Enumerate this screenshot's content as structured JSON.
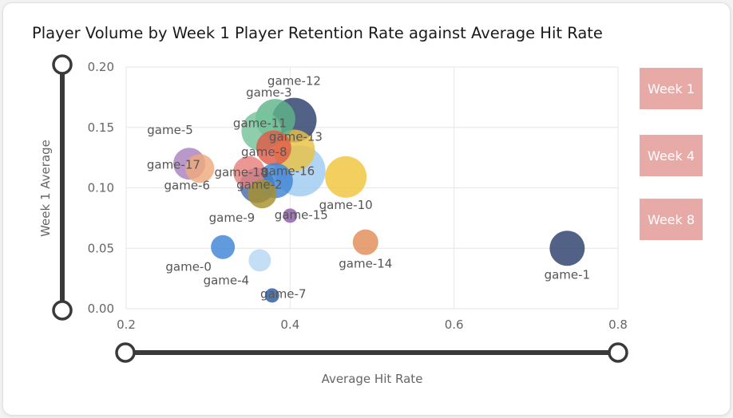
{
  "title": "Player Volume by Week 1 Player Retention Rate against Average Hit Rate",
  "buttons": [
    {
      "label": "Week 1"
    },
    {
      "label": "Week 4"
    },
    {
      "label": "Week 8"
    }
  ],
  "colors": {
    "button_bg": "#e8aaa6",
    "slider": "#3a3a3a"
  },
  "chart_data": {
    "type": "scatter",
    "title": "Player Volume by Week 1 Player Retention Rate against Average Hit Rate",
    "xlabel": "Average Hit Rate",
    "ylabel": "Week 1 Average",
    "xlim": [
      0.2,
      0.8
    ],
    "ylim": [
      0.0,
      0.2
    ],
    "xticks": [
      0.2,
      0.4,
      0.6,
      0.8
    ],
    "xtick_labels": [
      "0.2",
      "0.4",
      "0.6",
      "0.8"
    ],
    "yticks": [
      0.0,
      0.05,
      0.1,
      0.15,
      0.2
    ],
    "ytick_labels": [
      "0.00",
      "0.05",
      "0.10",
      "0.15",
      "0.20"
    ],
    "grid": true,
    "points": [
      {
        "label": "game-12",
        "x": 0.405,
        "y": 0.156,
        "size": 28,
        "color": "#2c3e6b"
      },
      {
        "label": "game-3",
        "x": 0.382,
        "y": 0.157,
        "size": 25,
        "color": "#5fb58a"
      },
      {
        "label": "game-11",
        "x": 0.365,
        "y": 0.147,
        "size": 25,
        "color": "#76c39a"
      },
      {
        "label": "game-13",
        "x": 0.405,
        "y": 0.131,
        "size": 26,
        "color": "#e9c244"
      },
      {
        "label": "game-8",
        "x": 0.38,
        "y": 0.133,
        "size": 22,
        "color": "#df5a48"
      },
      {
        "label": "game-5",
        "x": 0.277,
        "y": 0.12,
        "size": 20,
        "color": "#a883bd"
      },
      {
        "label": "game-17",
        "x": 0.29,
        "y": 0.116,
        "size": 18,
        "color": "#eea97c"
      },
      {
        "label": "game-18",
        "x": 0.35,
        "y": 0.113,
        "size": 20,
        "color": "#e8807d"
      },
      {
        "label": "game-6",
        "x": 0.36,
        "y": 0.102,
        "size": 22,
        "color": "#4a6ba8"
      },
      {
        "label": "game-2",
        "x": 0.382,
        "y": 0.106,
        "size": 22,
        "color": "#3e84d6"
      },
      {
        "label": "game-16",
        "x": 0.412,
        "y": 0.114,
        "size": 32,
        "color": "#9fcbf0"
      },
      {
        "label": "game-10",
        "x": 0.468,
        "y": 0.109,
        "size": 26,
        "color": "#f0c43c"
      },
      {
        "label": "game-9",
        "x": 0.366,
        "y": 0.095,
        "size": 18,
        "color": "#a8902c"
      },
      {
        "label": "game-15",
        "x": 0.4,
        "y": 0.077,
        "size": 9,
        "color": "#8d5aa8"
      },
      {
        "label": "game-0",
        "x": 0.318,
        "y": 0.051,
        "size": 15,
        "color": "#3e84d6"
      },
      {
        "label": "game-4",
        "x": 0.363,
        "y": 0.04,
        "size": 14,
        "color": "#b7d8f3"
      },
      {
        "label": "game-14",
        "x": 0.492,
        "y": 0.055,
        "size": 16,
        "color": "#e08d58"
      },
      {
        "label": "game-7",
        "x": 0.378,
        "y": 0.011,
        "size": 9,
        "color": "#2d5aa0"
      },
      {
        "label": "game-1",
        "x": 0.738,
        "y": 0.05,
        "size": 22,
        "color": "#2c3e6b"
      }
    ]
  }
}
